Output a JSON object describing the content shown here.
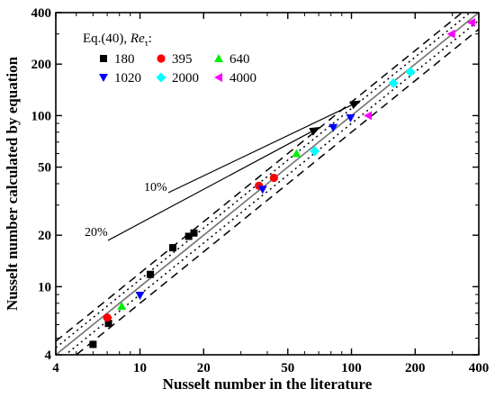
{
  "chart_data": {
    "type": "scatter",
    "x_scale": "log",
    "y_scale": "log",
    "xlim": [
      4,
      400
    ],
    "ylim": [
      4,
      400
    ],
    "xlabel": "Nusselt number in the literature",
    "ylabel": "Nusselt number calculated by equation",
    "x_ticks": [
      4,
      10,
      20,
      50,
      100,
      200,
      400
    ],
    "y_ticks": [
      4,
      10,
      20,
      50,
      100,
      200,
      400
    ],
    "grid": false,
    "legend": {
      "title_prefix": "Eq.(40), ",
      "title_italic": "Re",
      "title_sub": "τ",
      "title_suffix": ":",
      "placement": "top-left",
      "columns": 3
    },
    "series": [
      {
        "name": "180",
        "marker": "square",
        "color": "#000000",
        "points": [
          [
            6.0,
            4.6
          ],
          [
            7.1,
            6.1
          ],
          [
            11.2,
            11.8
          ],
          [
            14.3,
            16.9
          ],
          [
            17.0,
            19.7
          ],
          [
            18.0,
            20.6
          ]
        ]
      },
      {
        "name": "395",
        "marker": "circle",
        "color": "#ff0000",
        "points": [
          [
            7.0,
            6.6
          ],
          [
            36.5,
            38.9
          ],
          [
            43.0,
            43.3
          ]
        ]
      },
      {
        "name": "640",
        "marker": "triangle-up",
        "color": "#00ee00",
        "points": [
          [
            8.2,
            7.7
          ],
          [
            55.0,
            60.0
          ]
        ]
      },
      {
        "name": "1020",
        "marker": "triangle-down",
        "color": "#0000ff",
        "points": [
          [
            10.0,
            8.9
          ],
          [
            38.0,
            37.0
          ],
          [
            82.0,
            85.0
          ],
          [
            99.0,
            97.0
          ]
        ]
      },
      {
        "name": "2000",
        "marker": "diamond",
        "color": "#00ffff",
        "points": [
          [
            67.0,
            62.0
          ],
          [
            158.0,
            155.0
          ],
          [
            190.0,
            180.0
          ]
        ]
      },
      {
        "name": "4000",
        "marker": "triangle-left",
        "color": "#ff00ff",
        "points": [
          [
            120.0,
            100.0
          ],
          [
            297.0,
            300.0
          ],
          [
            370.0,
            350.0
          ]
        ]
      }
    ],
    "reference_lines": [
      {
        "kind": "identity",
        "factor": 1.0,
        "style": "solid",
        "color": "#707070"
      },
      {
        "kind": "band",
        "factor": 1.1,
        "style": "dotted",
        "color": "#000000"
      },
      {
        "kind": "band",
        "factor": 0.9,
        "style": "dotted",
        "color": "#000000"
      },
      {
        "kind": "band",
        "factor": 1.2,
        "style": "dashed",
        "color": "#000000"
      },
      {
        "kind": "band",
        "factor": 0.8,
        "style": "dashed",
        "color": "#000000"
      }
    ],
    "annotations": [
      {
        "text": "10%",
        "points_to_band": 1.1
      },
      {
        "text": "20%",
        "points_to_band": 1.2
      }
    ]
  }
}
